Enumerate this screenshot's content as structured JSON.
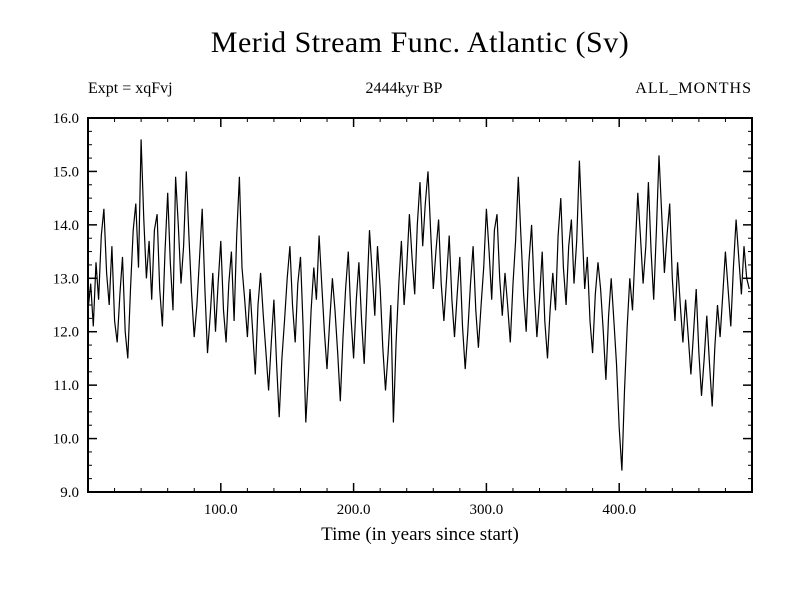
{
  "header": {
    "title": "Merid Stream Func. Atlantic (Sv)",
    "expt_label": "Expt = xqFvj",
    "period_label": "2444kyr BP",
    "months_label": "ALL_MONTHS"
  },
  "chart_data": {
    "type": "line",
    "title": "Merid Stream Func. Atlantic (Sv)",
    "xlabel": "Time (in years since start)",
    "ylabel": "",
    "xlim": [
      0,
      500
    ],
    "ylim": [
      9.0,
      16.0
    ],
    "xticks": [
      100,
      200,
      300,
      400
    ],
    "yticks": [
      9,
      10,
      11,
      12,
      13,
      14,
      15,
      16
    ],
    "x_minor_step": 20,
    "y_minor_step": 0.25,
    "grid": false,
    "legend": "none",
    "line_color": "#000000",
    "x_start": 0,
    "x_step": 2,
    "series": [
      {
        "name": "ALL_MONTHS",
        "values": [
          12.4,
          12.9,
          12.1,
          13.3,
          12.6,
          13.8,
          14.3,
          13.1,
          12.5,
          13.6,
          12.2,
          11.8,
          12.7,
          13.4,
          12.0,
          11.5,
          12.8,
          13.9,
          14.4,
          13.2,
          15.6,
          14.1,
          13.0,
          13.7,
          12.6,
          13.9,
          14.2,
          12.8,
          12.1,
          13.5,
          14.6,
          13.3,
          12.4,
          14.9,
          14.0,
          12.9,
          13.6,
          15.0,
          13.8,
          12.7,
          11.9,
          12.5,
          13.4,
          14.3,
          12.8,
          11.6,
          12.3,
          13.1,
          12.0,
          12.9,
          13.7,
          12.4,
          11.8,
          12.9,
          13.5,
          12.2,
          13.8,
          14.9,
          13.2,
          12.6,
          11.9,
          12.8,
          12.0,
          11.2,
          12.5,
          13.1,
          12.3,
          11.6,
          10.9,
          11.8,
          12.6,
          11.4,
          10.4,
          11.5,
          12.2,
          13.0,
          13.6,
          12.5,
          11.8,
          12.9,
          13.4,
          12.1,
          10.3,
          11.2,
          12.4,
          13.2,
          12.6,
          13.8,
          12.9,
          12.0,
          11.3,
          12.2,
          13.0,
          12.4,
          11.6,
          10.7,
          11.9,
          12.8,
          13.5,
          12.3,
          11.5,
          12.6,
          13.3,
          12.2,
          11.4,
          12.7,
          13.9,
          13.1,
          12.3,
          13.6,
          12.8,
          11.7,
          10.9,
          11.6,
          12.5,
          10.3,
          11.8,
          12.9,
          13.7,
          12.5,
          13.2,
          14.2,
          13.4,
          12.7,
          14.0,
          14.8,
          13.6,
          14.4,
          15.0,
          13.9,
          12.8,
          13.5,
          14.1,
          12.9,
          12.2,
          13.0,
          13.8,
          12.6,
          11.9,
          12.7,
          13.4,
          12.1,
          11.3,
          12.0,
          12.9,
          13.6,
          12.4,
          11.7,
          12.5,
          13.2,
          14.3,
          13.5,
          12.6,
          13.9,
          14.2,
          13.0,
          12.3,
          13.1,
          12.5,
          11.8,
          12.9,
          13.7,
          14.9,
          13.8,
          12.7,
          12.0,
          13.3,
          14.0,
          12.8,
          11.9,
          12.6,
          13.5,
          12.2,
          11.5,
          12.4,
          13.1,
          12.4,
          13.8,
          14.5,
          13.2,
          12.5,
          13.6,
          14.1,
          12.9,
          13.7,
          15.2,
          14.0,
          12.8,
          13.4,
          12.2,
          11.6,
          12.7,
          13.3,
          12.8,
          12.0,
          11.1,
          12.3,
          13.0,
          12.2,
          11.4,
          10.2,
          9.4,
          10.9,
          12.1,
          13.0,
          12.4,
          13.5,
          14.6,
          13.8,
          12.9,
          13.6,
          14.8,
          13.5,
          12.6,
          13.9,
          15.3,
          14.2,
          13.1,
          13.8,
          14.4,
          13.0,
          12.2,
          13.3,
          12.5,
          11.8,
          12.6,
          11.9,
          11.2,
          12.0,
          12.8,
          11.6,
          10.8,
          11.5,
          12.3,
          11.4,
          10.6,
          11.7,
          12.5,
          11.9,
          12.7,
          13.5,
          12.8,
          12.1,
          13.2,
          14.1,
          13.4,
          12.7,
          13.6,
          13.0,
          12.8
        ]
      }
    ]
  }
}
